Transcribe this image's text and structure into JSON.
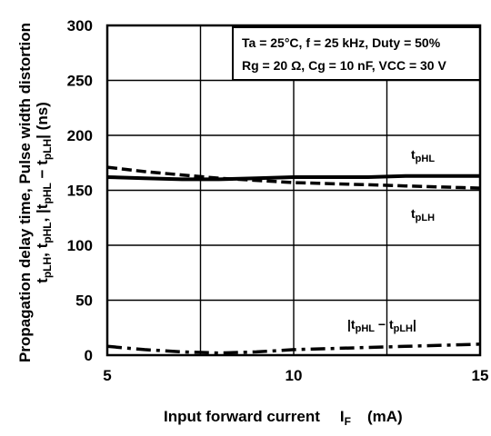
{
  "chart_data": {
    "type": "line",
    "xlabel": "Input forward current",
    "xlabel_symbol": "I",
    "xlabel_sub": "F",
    "xlabel_unit": "(mA)",
    "ylabel_line1": "Propagation delay time, Pulse width distortion",
    "ylabel_line2": "t",
    "ylabel_sub1": "pLH",
    "ylabel_sep1": ", t",
    "ylabel_sub2": "pHL",
    "ylabel_sep2": ", |t",
    "ylabel_sub3": "pHL",
    "ylabel_sep3": " − t",
    "ylabel_sub4": "pLH",
    "ylabel_end": "|   (ns)",
    "xlim": [
      5,
      15
    ],
    "ylim": [
      0,
      300
    ],
    "x_ticks": [
      5,
      10,
      15
    ],
    "x_tick_labels": [
      "5",
      "10",
      "15"
    ],
    "y_ticks": [
      0,
      50,
      100,
      150,
      200,
      250,
      300
    ],
    "y_tick_labels": [
      "0",
      "50",
      "100",
      "150",
      "200",
      "250",
      "300"
    ],
    "grid": true,
    "conditions": {
      "line1": "Ta = 25°C, f = 25 kHz, Duty = 50%",
      "line2": "Rg = 20 Ω, Cg = 10 nF, VCC = 30 V"
    },
    "series": [
      {
        "name": "tpHL",
        "label_main": "t",
        "label_sub": "pHL",
        "style": "solid",
        "x": [
          5,
          6,
          7,
          7.5,
          8,
          9,
          10,
          11,
          12,
          13,
          14,
          15
        ],
        "y": [
          162,
          161,
          160,
          160,
          160,
          161,
          162,
          162,
          162,
          163,
          163,
          163
        ]
      },
      {
        "name": "tpLH",
        "label_main": "t",
        "label_sub": "pLH",
        "style": "dashed",
        "x": [
          5,
          5.5,
          6,
          7,
          8,
          9,
          10,
          11,
          12,
          13,
          14,
          15
        ],
        "y": [
          171,
          169,
          167,
          164,
          161,
          159,
          157,
          156,
          155,
          154,
          153,
          152
        ]
      },
      {
        "name": "|tpHL − tpLH|",
        "label_pre": "|t",
        "label_sub1": "pHL",
        "label_mid": " − t",
        "label_sub2": "pLH",
        "label_post": "|",
        "style": "dashdot",
        "x": [
          5,
          6,
          7,
          8,
          9,
          10,
          11,
          12,
          13,
          14,
          15
        ],
        "y": [
          8,
          5,
          3,
          2,
          3,
          5,
          6,
          7,
          8,
          9,
          10
        ]
      }
    ]
  }
}
